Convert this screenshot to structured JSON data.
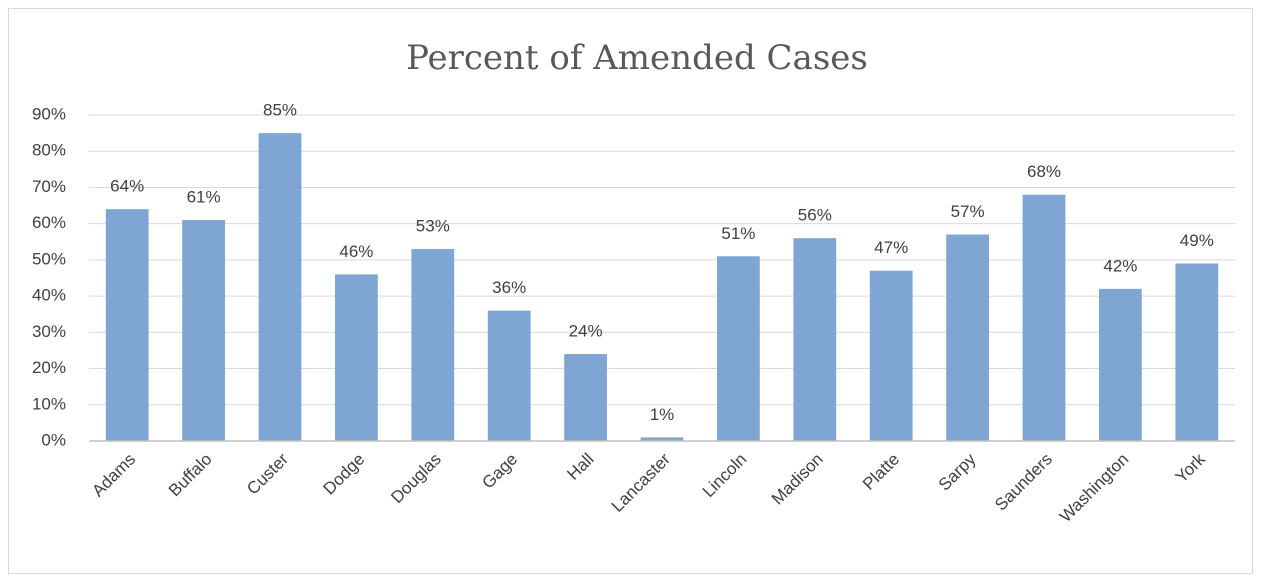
{
  "chart_data": {
    "type": "bar",
    "title": "Percent of Amended Cases",
    "categories": [
      "Adams",
      "Buffalo",
      "Custer",
      "Dodge",
      "Douglas",
      "Gage",
      "Hall",
      "Lancaster",
      "Lincoln",
      "Madison",
      "Platte",
      "Sarpy",
      "Saunders",
      "Washington",
      "York"
    ],
    "values": [
      64,
      61,
      85,
      46,
      53,
      36,
      24,
      1,
      51,
      56,
      47,
      57,
      68,
      42,
      49
    ],
    "value_labels": [
      "64%",
      "61%",
      "85%",
      "46%",
      "53%",
      "36%",
      "24%",
      "1%",
      "51%",
      "56%",
      "47%",
      "57%",
      "68%",
      "42%",
      "49%"
    ],
    "color": "#7fa6d2",
    "ylim": [
      0,
      90
    ],
    "yticks": [
      {
        "value": 0,
        "label": "0%"
      },
      {
        "value": 10,
        "label": "10%"
      },
      {
        "value": 20,
        "label": "20%"
      },
      {
        "value": 30,
        "label": "30%"
      },
      {
        "value": 40,
        "label": "40%"
      },
      {
        "value": 50,
        "label": "50%"
      },
      {
        "value": 60,
        "label": "60%"
      },
      {
        "value": 70,
        "label": "70%"
      },
      {
        "value": 80,
        "label": "80%"
      },
      {
        "value": 90,
        "label": "90%"
      }
    ],
    "grid": true
  }
}
